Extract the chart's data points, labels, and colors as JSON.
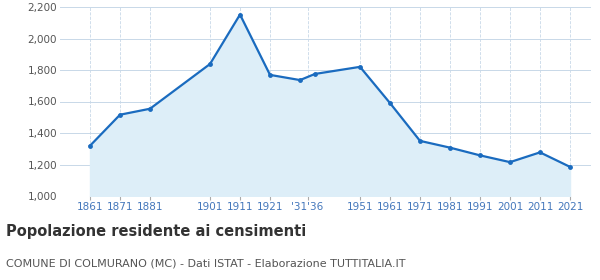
{
  "years": [
    1861,
    1871,
    1881,
    1901,
    1911,
    1921,
    1931,
    1936,
    1951,
    1961,
    1971,
    1981,
    1991,
    2001,
    2011,
    2021
  ],
  "population": [
    1319,
    1516,
    1554,
    1838,
    2152,
    1769,
    1736,
    1775,
    1820,
    1590,
    1350,
    1307,
    1258,
    1215,
    1277,
    1185
  ],
  "x_ticks": [
    1861,
    1871,
    1881,
    1901,
    1911,
    1921,
    1933.5,
    1951,
    1961,
    1971,
    1981,
    1991,
    2001,
    2011,
    2021
  ],
  "x_tick_labels": [
    "1861",
    "1871",
    "1881",
    "1901",
    "1911",
    "1921",
    "'31'36",
    "1951",
    "1961",
    "1971",
    "1981",
    "1991",
    "2001",
    "2011",
    "2021"
  ],
  "ylim": [
    1000,
    2200
  ],
  "yticks": [
    1000,
    1200,
    1400,
    1600,
    1800,
    2000,
    2200
  ],
  "xlim": [
    1851,
    2028
  ],
  "line_color": "#1a6bbf",
  "fill_color": "#ddeef8",
  "marker_color": "#1a6bbf",
  "grid_color_h": "#c8d8e8",
  "grid_color_v": "#c8d8e8",
  "background_color": "#ffffff",
  "title": "Popolazione residente ai censimenti",
  "subtitle": "COMUNE DI COLMURANO (MC) - Dati ISTAT - Elaborazione TUTTITALIA.IT",
  "title_fontsize": 10.5,
  "subtitle_fontsize": 8,
  "xtick_color": "#4477bb",
  "ytick_color": "#555555",
  "ytick_fontsize": 7.5,
  "xtick_fontsize": 7.5
}
